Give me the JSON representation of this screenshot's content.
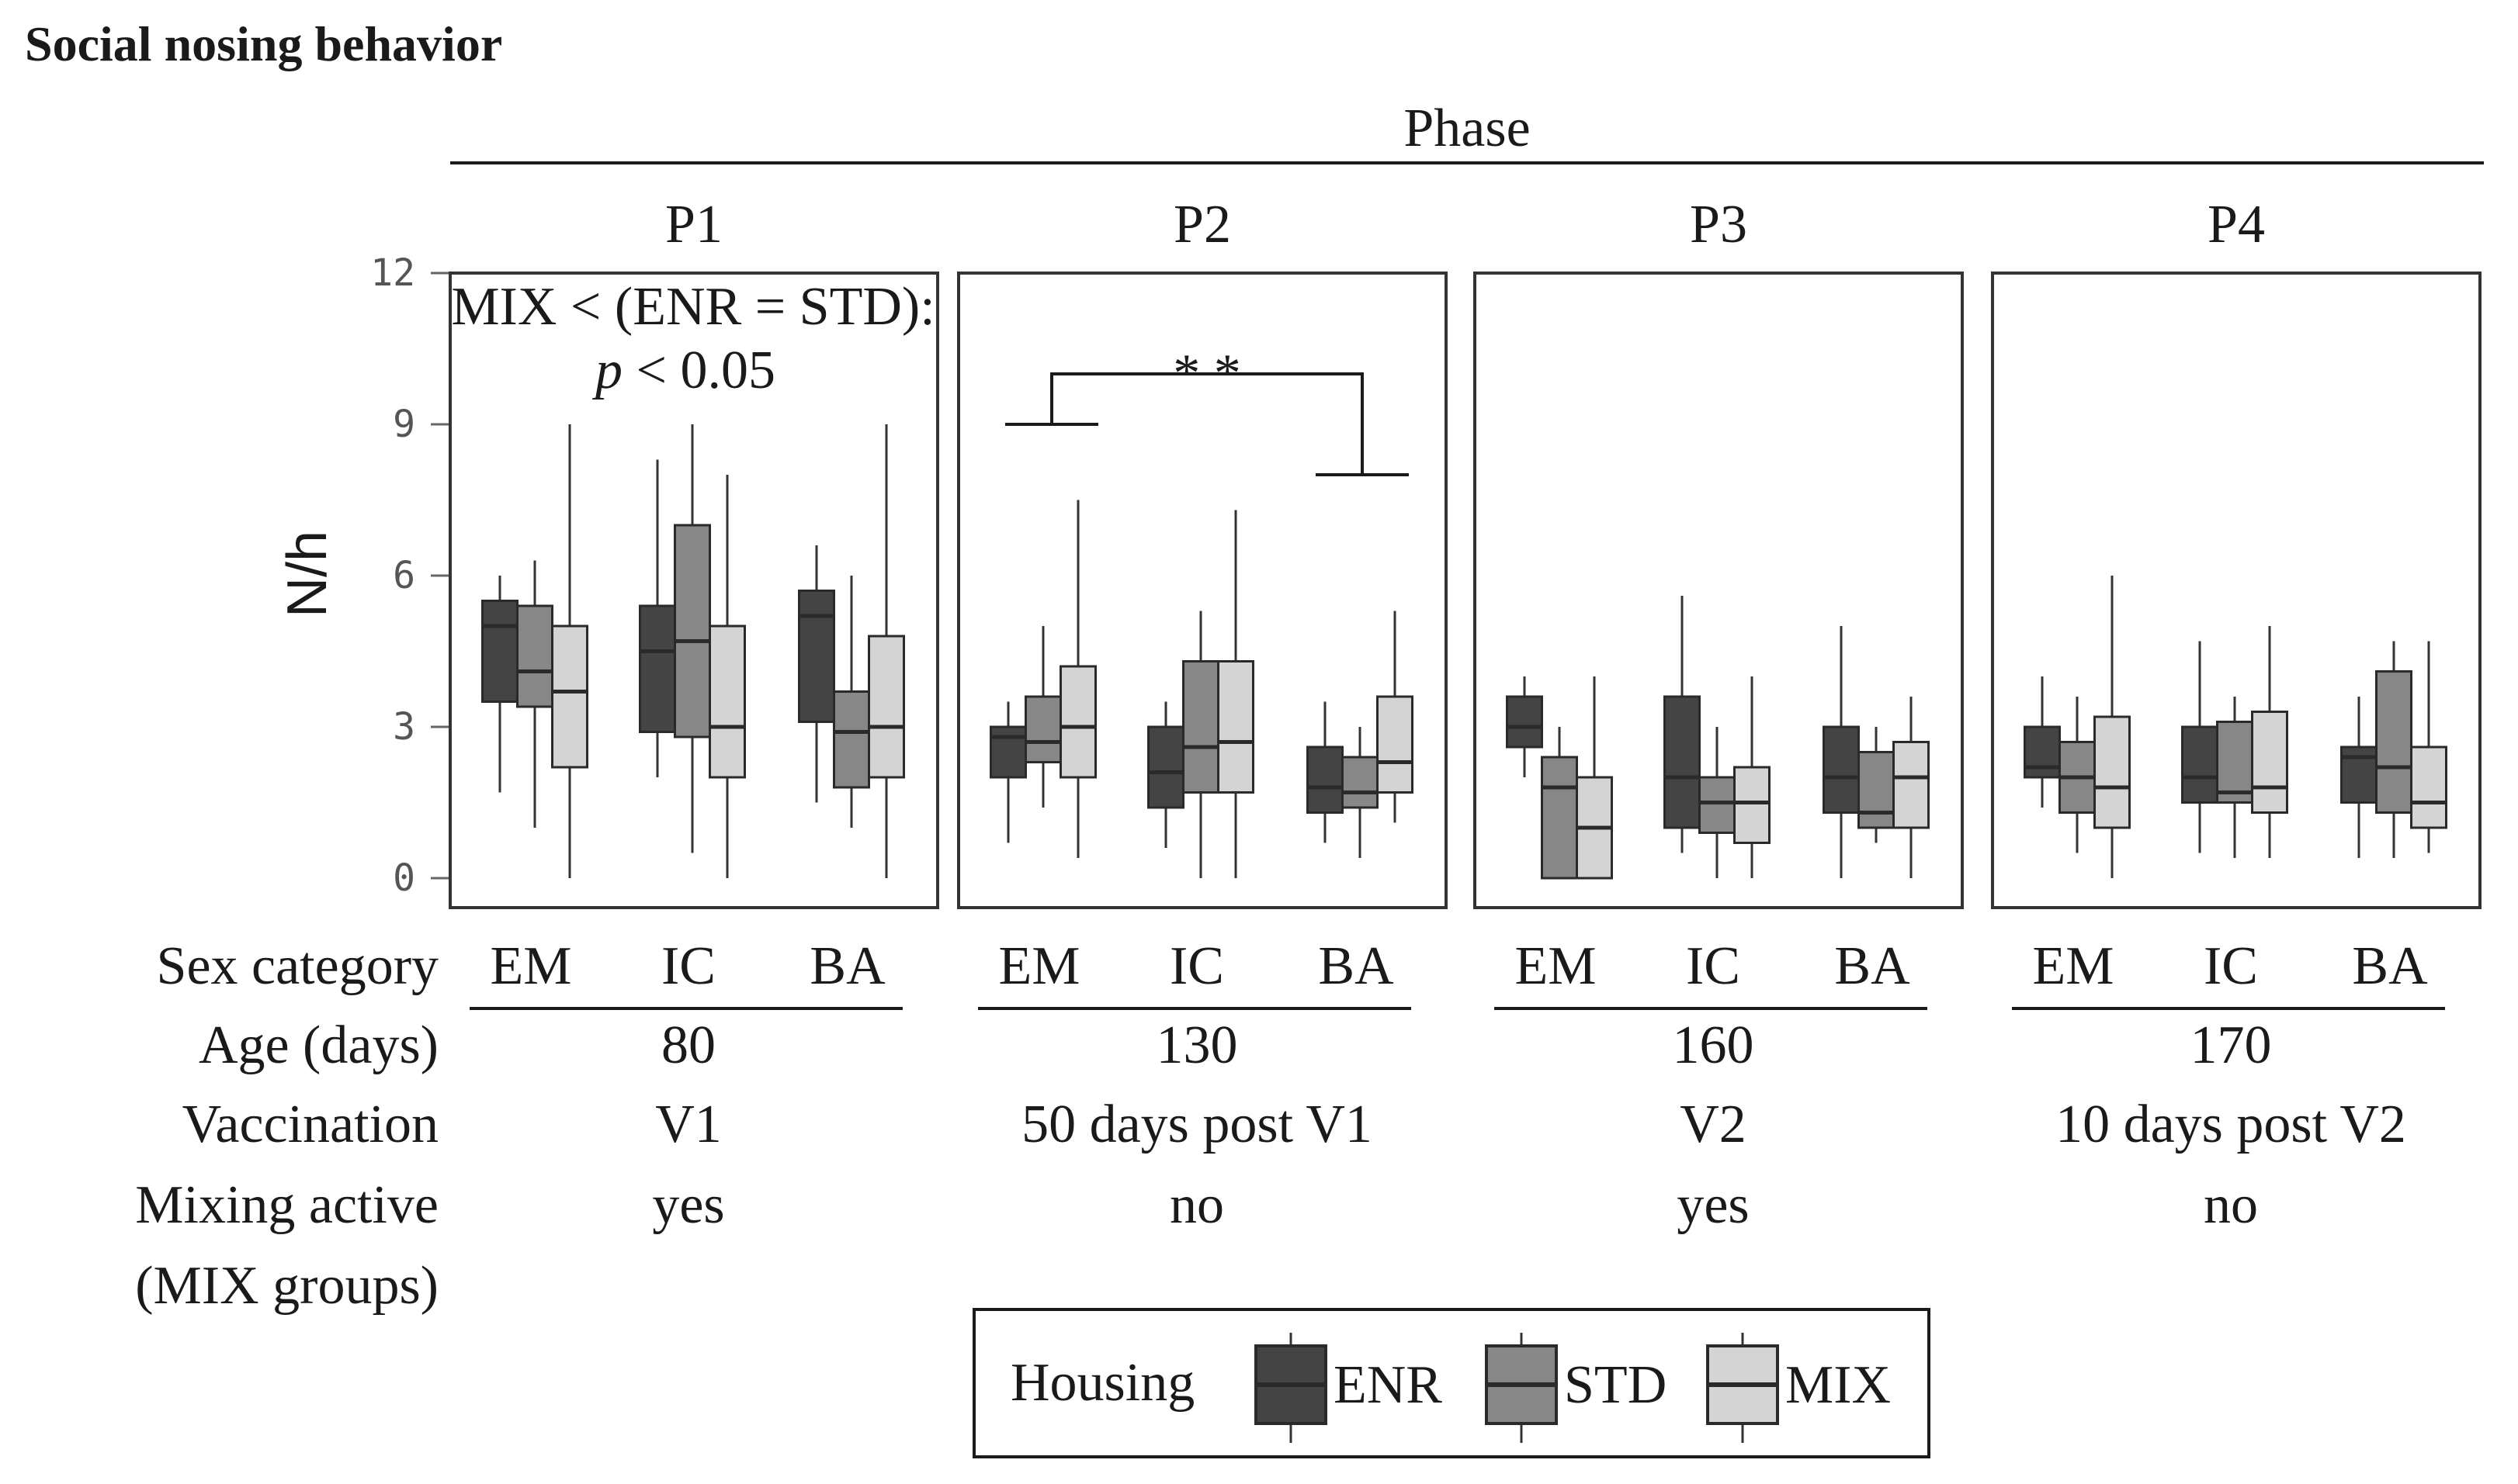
{
  "chart_data": {
    "type": "box",
    "title": "Social nosing behavior",
    "facet_title": "Phase",
    "ylabel": "N/h",
    "ylim": [
      0,
      12
    ],
    "yticks": [
      0,
      3,
      6,
      9,
      12
    ],
    "row_labels": {
      "sex": "Sex category",
      "age": "Age (days)",
      "vaccination": "Vaccination",
      "mixing_line1": "Mixing active",
      "mixing_line2": "(MIX groups)"
    },
    "legend": {
      "title": "Housing",
      "entries": [
        {
          "name": "ENR",
          "color": "#444444"
        },
        {
          "name": "STD",
          "color": "#878787"
        },
        {
          "name": "MIX",
          "color": "#d4d4d4"
        }
      ]
    },
    "annotation": {
      "line1": "MIX < (ENR = STD):",
      "p_symbol": "p",
      "p_rest": " < 0.05"
    },
    "significance": {
      "label": "* *",
      "left_y": 9,
      "right_y": 8,
      "top_y": 10
    },
    "panels": [
      {
        "name": "P1",
        "age": "80",
        "vaccination": "V1",
        "mixing": "yes",
        "categories": [
          {
            "name": "EM",
            "boxes": [
              {
                "group": "ENR",
                "min": 1.7,
                "q1": 3.5,
                "median": 5.0,
                "q3": 5.5,
                "max": 6.0
              },
              {
                "group": "STD",
                "min": 1.0,
                "q1": 3.4,
                "median": 4.1,
                "q3": 5.4,
                "max": 6.3
              },
              {
                "group": "MIX",
                "min": 0.0,
                "q1": 2.2,
                "median": 3.7,
                "q3": 5.0,
                "max": 9.0
              }
            ]
          },
          {
            "name": "IC",
            "boxes": [
              {
                "group": "ENR",
                "min": 2.0,
                "q1": 2.9,
                "median": 4.5,
                "q3": 5.4,
                "max": 8.3
              },
              {
                "group": "STD",
                "min": 0.5,
                "q1": 2.8,
                "median": 4.7,
                "q3": 7.0,
                "max": 9.0
              },
              {
                "group": "MIX",
                "min": 0.0,
                "q1": 2.0,
                "median": 3.0,
                "q3": 5.0,
                "max": 8.0
              }
            ]
          },
          {
            "name": "BA",
            "boxes": [
              {
                "group": "ENR",
                "min": 1.5,
                "q1": 3.1,
                "median": 5.2,
                "q3": 5.7,
                "max": 6.6
              },
              {
                "group": "STD",
                "min": 1.0,
                "q1": 1.8,
                "median": 2.9,
                "q3": 3.7,
                "max": 6.0
              },
              {
                "group": "MIX",
                "min": 0.0,
                "q1": 2.0,
                "median": 3.0,
                "q3": 4.8,
                "max": 9.0
              }
            ]
          }
        ]
      },
      {
        "name": "P2",
        "age": "130",
        "vaccination": "50 days post V1",
        "mixing": "no",
        "categories": [
          {
            "name": "EM",
            "boxes": [
              {
                "group": "ENR",
                "min": 0.7,
                "q1": 2.0,
                "median": 2.8,
                "q3": 3.0,
                "max": 3.5
              },
              {
                "group": "STD",
                "min": 1.4,
                "q1": 2.3,
                "median": 2.7,
                "q3": 3.6,
                "max": 5.0
              },
              {
                "group": "MIX",
                "min": 0.4,
                "q1": 2.0,
                "median": 3.0,
                "q3": 4.2,
                "max": 7.5
              }
            ]
          },
          {
            "name": "IC",
            "boxes": [
              {
                "group": "ENR",
                "min": 0.6,
                "q1": 1.4,
                "median": 2.1,
                "q3": 3.0,
                "max": 3.5
              },
              {
                "group": "STD",
                "min": 0.0,
                "q1": 1.7,
                "median": 2.6,
                "q3": 4.3,
                "max": 5.3
              },
              {
                "group": "MIX",
                "min": 0.0,
                "q1": 1.7,
                "median": 2.7,
                "q3": 4.3,
                "max": 7.3
              }
            ]
          },
          {
            "name": "BA",
            "boxes": [
              {
                "group": "ENR",
                "min": 0.7,
                "q1": 1.3,
                "median": 1.8,
                "q3": 2.6,
                "max": 3.5
              },
              {
                "group": "STD",
                "min": 0.4,
                "q1": 1.4,
                "median": 1.7,
                "q3": 2.4,
                "max": 3.0
              },
              {
                "group": "MIX",
                "min": 1.1,
                "q1": 1.7,
                "median": 2.3,
                "q3": 3.6,
                "max": 5.3
              }
            ]
          }
        ]
      },
      {
        "name": "P3",
        "age": "160",
        "vaccination": "V2",
        "mixing": "yes",
        "categories": [
          {
            "name": "EM",
            "boxes": [
              {
                "group": "ENR",
                "min": 2.0,
                "q1": 2.6,
                "median": 3.0,
                "q3": 3.6,
                "max": 4.0
              },
              {
                "group": "STD",
                "min": 0.0,
                "q1": 0.0,
                "median": 1.8,
                "q3": 2.4,
                "max": 3.0
              },
              {
                "group": "MIX",
                "min": 0.0,
                "q1": 0.0,
                "median": 1.0,
                "q3": 2.0,
                "max": 4.0
              }
            ]
          },
          {
            "name": "IC",
            "boxes": [
              {
                "group": "ENR",
                "min": 0.5,
                "q1": 1.0,
                "median": 2.0,
                "q3": 3.6,
                "max": 5.6
              },
              {
                "group": "STD",
                "min": 0.0,
                "q1": 0.9,
                "median": 1.5,
                "q3": 2.0,
                "max": 3.0
              },
              {
                "group": "MIX",
                "min": 0.0,
                "q1": 0.7,
                "median": 1.5,
                "q3": 2.2,
                "max": 4.0
              }
            ]
          },
          {
            "name": "BA",
            "boxes": [
              {
                "group": "ENR",
                "min": 0.0,
                "q1": 1.3,
                "median": 2.0,
                "q3": 3.0,
                "max": 5.0
              },
              {
                "group": "STD",
                "min": 0.7,
                "q1": 1.0,
                "median": 1.3,
                "q3": 2.5,
                "max": 3.0
              },
              {
                "group": "MIX",
                "min": 0.0,
                "q1": 1.0,
                "median": 2.0,
                "q3": 2.7,
                "max": 3.6
              }
            ]
          }
        ]
      },
      {
        "name": "P4",
        "age": "170",
        "vaccination": "10 days post V2",
        "mixing": "no",
        "categories": [
          {
            "name": "EM",
            "boxes": [
              {
                "group": "ENR",
                "min": 1.4,
                "q1": 2.0,
                "median": 2.2,
                "q3": 3.0,
                "max": 4.0
              },
              {
                "group": "STD",
                "min": 0.5,
                "q1": 1.3,
                "median": 2.0,
                "q3": 2.7,
                "max": 3.6
              },
              {
                "group": "MIX",
                "min": 0.0,
                "q1": 1.0,
                "median": 1.8,
                "q3": 3.2,
                "max": 6.0
              }
            ]
          },
          {
            "name": "IC",
            "boxes": [
              {
                "group": "ENR",
                "min": 0.5,
                "q1": 1.5,
                "median": 2.0,
                "q3": 3.0,
                "max": 4.7
              },
              {
                "group": "STD",
                "min": 0.4,
                "q1": 1.5,
                "median": 1.7,
                "q3": 3.1,
                "max": 3.6
              },
              {
                "group": "MIX",
                "min": 0.4,
                "q1": 1.3,
                "median": 1.8,
                "q3": 3.3,
                "max": 5.0
              }
            ]
          },
          {
            "name": "BA",
            "boxes": [
              {
                "group": "ENR",
                "min": 0.4,
                "q1": 1.5,
                "median": 2.4,
                "q3": 2.6,
                "max": 3.6
              },
              {
                "group": "STD",
                "min": 0.4,
                "q1": 1.3,
                "median": 2.2,
                "q3": 4.1,
                "max": 4.7
              },
              {
                "group": "MIX",
                "min": 0.5,
                "q1": 1.0,
                "median": 1.5,
                "q3": 2.6,
                "max": 4.7
              }
            ]
          }
        ]
      }
    ]
  }
}
